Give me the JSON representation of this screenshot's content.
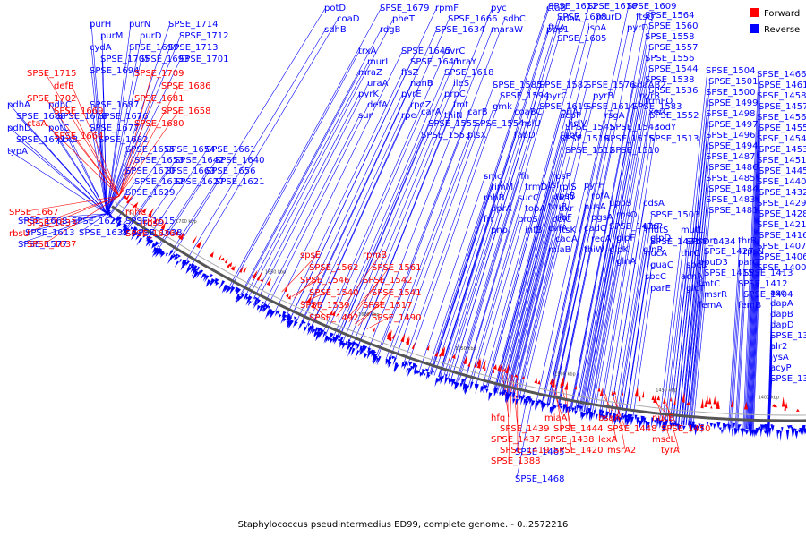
{
  "title": "Staphylococcus pseudintermedius ED99, complete genome. - 0..2572216",
  "legend": [
    {
      "label": "Forward",
      "color": "#ff0000"
    },
    {
      "label": "Reverse",
      "color": "#0000ff"
    }
  ],
  "colors": {
    "forward": "#ff0000",
    "reverse": "#0000ff",
    "backbone": "#555555"
  },
  "ticks": [
    "1700 kbp",
    "1650 kbp",
    "1600 kbp",
    "1550 kbp",
    "1500 kbp",
    "1450 kbp",
    "1400 kbp"
  ],
  "reverse_labels": [
    "potD",
    "SPSE_1679",
    "rpmF",
    "pyc",
    "ctaB",
    "coaD",
    "pheT",
    "SPSE_1666",
    "sdhC",
    "sdhA",
    "sdhB",
    "rdgB",
    "SPSE_1634",
    "maraW",
    "pbp1",
    "SPSE_1612",
    "SPSE_1610",
    "SPSE_1609",
    "SPSE_1608",
    "murD",
    "ftsQ",
    "ftsA",
    "ispA",
    "pyrD",
    "SPSE_1605",
    "SPSE_1585",
    "SPSE_1582",
    "SPSE_1576",
    "sdaAB2",
    "SPSE_1594",
    "pyrC",
    "pyrB",
    "pyrR",
    "gmk",
    "SPSE_1619",
    "SPSE_1614",
    "SPSE_1583",
    "carA",
    "carB",
    "coaBC",
    "priA",
    "SPSE_1555",
    "SPSE_1554",
    "hslU",
    "hslV",
    "SPSE_1553",
    "plsX",
    "fabD",
    "fabG",
    "acpP",
    "rsgA",
    "SPSE_1552",
    "SPSE_1545",
    "SPSE_1543",
    "codY",
    "SPSE_1519",
    "SPSE_1515",
    "SPSE_1513",
    "SPSE_1512",
    "SPSE_1510",
    "SPSE_1564",
    "SPSE_1560",
    "SPSE_1558",
    "SPSE_1557",
    "SPSE_1556",
    "SPSE_1544",
    "SPSE_1538",
    "SPSE_1536",
    "trmFO",
    "xerC",
    "SPSE_1504",
    "SPSE_1501",
    "SPSE_1500",
    "SPSE_1499",
    "SPSE_1498",
    "SPSE_1497",
    "SPSE_1496",
    "SPSE_1494",
    "SPSE_1487",
    "SPSE_1486",
    "SPSE_1485",
    "SPSE_1484",
    "SPSE_1483",
    "SPSE_1481",
    "SPSE_1466",
    "SPSE_1461",
    "SPSE_1458",
    "SPSE_1457",
    "SPSE_1456",
    "SPSE_1455",
    "SPSE_1454",
    "SPSE_1453",
    "SPSE_1451",
    "SPSE_1445",
    "SPSE_1440",
    "SPSE_1432",
    "SPSE_1429",
    "SPSE_1428",
    "SPSE_1421",
    "SPSE_1416",
    "SPSE_1407",
    "SPSE_1406",
    "SPSE_1400",
    "asd",
    "dapA",
    "dapB",
    "dapD",
    "SPSE_1391",
    "alr2",
    "lysA",
    "acyP",
    "SPSE_1383",
    "purH",
    "purN",
    "SPSE_1714",
    "purM",
    "purD",
    "SPSE_1712",
    "cydA",
    "SPSE_1699",
    "SPSE_1713",
    "SPSE_1705",
    "SPSE_1693",
    "SPSE_1701",
    "SPSE_1694",
    "pdhA",
    "pdhC",
    "SPSE_1687",
    "SPSE_1688",
    "SPSE_1678",
    "SPSE_1676",
    "pdhD",
    "potC",
    "SPSE_1677",
    "SPSE_1671",
    "potB",
    "SPSE_1682",
    "typA",
    "SPSE_1655",
    "SPSE_1654",
    "SPSE_1661",
    "SPSE_1653",
    "SPSE_1642",
    "SPSE_1640",
    "SPSE_1670",
    "SPSE_1663",
    "SPSE_1656",
    "SPSE_1632",
    "SPSE_1627",
    "SPSE_1621",
    "SPSE_1629",
    "SPSE_1668",
    "SPSE_1620",
    "SPSE_1615",
    "SPSE_1613",
    "SPSE_1635",
    "SPSE_1638",
    "SPSE_1577",
    "trxA",
    "SPSE_1645",
    "uvrC",
    "murI",
    "SPSE_1641",
    "mraY",
    "mraZ",
    "ftsZ",
    "SPSE_1618",
    "uraA",
    "nanB",
    "ileS",
    "pyrK",
    "pyrE",
    "prpC",
    "defA",
    "rpoZ",
    "fmt",
    "sun",
    "rpe",
    "thiN",
    "smc",
    "ffh",
    "rpsP",
    "rimM",
    "trmD",
    "rplS",
    "rnhB",
    "sucC",
    "sucD",
    "dprA",
    "topA",
    "dxr",
    "frr",
    "proS",
    "polC",
    "pnp",
    "infB",
    "ftsK",
    "tsf",
    "pyrH",
    "rpsB",
    "rbfA",
    "truB",
    "nusA",
    "ribF",
    "pgsA",
    "cvfA",
    "cadC",
    "cadA",
    "recA",
    "miaB",
    "thiW",
    "uppS",
    "cdsA",
    "rpsO",
    "SPSE_1503",
    "SPSE_1476",
    "glpP",
    "glpF",
    "glpD",
    "glpK",
    "glnR",
    "glnA",
    "mutS",
    "mutL",
    "SPSE_1431",
    "SPSE_1434",
    "nucA",
    "thrC",
    "guaC",
    "sbcD",
    "sbcC",
    "acnA",
    "parE",
    "glcT",
    "hom",
    "thrB",
    "SPSE_1427",
    "rpsN",
    "opuD3",
    "parC",
    "SPSE_1415",
    "SPSE_1413",
    "fmtC",
    "SPSE_1412",
    "msrR",
    "SPSE_1404",
    "femA",
    "femB",
    "SPSE_1465",
    "SPSE_1468"
  ],
  "forward_labels": [
    "SPSE_1715",
    "SPSE_1709",
    "defB",
    "SPSE_1686",
    "SPSE_1702",
    "SPSE_1681",
    "SPSE_1669",
    "SPSE_1658",
    "ctaA",
    "SPSE_1680",
    "SPSE_1664",
    "SPSE_1667",
    "rnhC",
    "SPSE_1633",
    "rbsD",
    "rbsU",
    "SPSE_1636",
    "SPSE_1637",
    "spsE",
    "rpmB",
    "SPSE_1562",
    "SPSE_1561",
    "SPSE_1546",
    "SPSE_1542",
    "SPSE_1540",
    "SPSE_1541",
    "SPSE_1539",
    "SPSE_1517",
    "SPSE_1492",
    "SPSE_1490",
    "hfq",
    "miaA",
    "bsaA",
    "nucB",
    "SPSE_1439",
    "SPSE_1444",
    "SPSE_1448",
    "SPSE_1450",
    "SPSE_1437",
    "SPSE_1438",
    "lexA",
    "mscL",
    "SPSE_1419",
    "SPSE_1420",
    "msrA2",
    "tyrA",
    "SPSE_1388"
  ]
}
